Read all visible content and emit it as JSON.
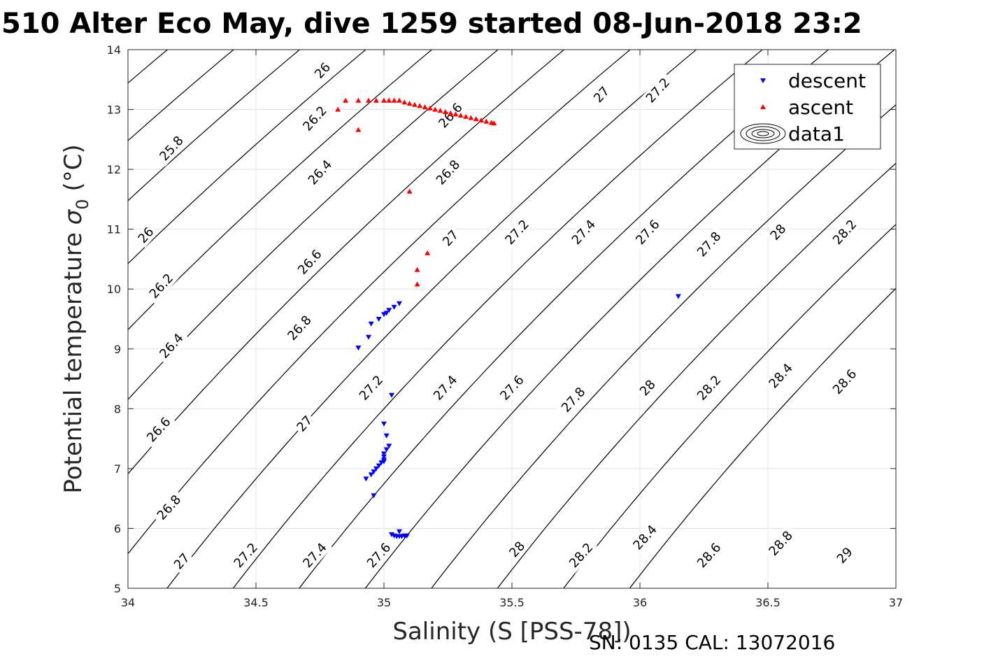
{
  "chart_data": {
    "type": "scatter",
    "title": "510 Alter Eco May, dive 1259 started 08-Jun-2018 23:2",
    "xlabel": "Salinity (S [PSS-78])",
    "ylabel": "Potential temperature σ0 (°C)",
    "ylabel_main": "Potential temperature ",
    "ylabel_sigma": "σ",
    "ylabel_sub": "0",
    "ylabel_unit": " (°C)",
    "footer": "SN: 0135  CAL: 13072016",
    "xlim": [
      34,
      37
    ],
    "ylim": [
      5,
      14
    ],
    "grid": true,
    "legend_position": "top-right",
    "x_ticks": [
      34,
      34.5,
      35,
      35.5,
      36,
      36.5,
      37
    ],
    "x_tick_labels": [
      "34",
      "34.5",
      "35",
      "35.5",
      "36",
      "36.5",
      "37"
    ],
    "y_ticks": [
      5,
      6,
      7,
      8,
      9,
      10,
      11,
      12,
      13,
      14
    ],
    "y_tick_labels": [
      "5",
      "6",
      "7",
      "8",
      "9",
      "10",
      "11",
      "12",
      "13",
      "14"
    ],
    "series": [
      {
        "name": "descent",
        "marker": "triangle-down",
        "color": "#0000ff",
        "points": [
          [
            34.9,
            9.02
          ],
          [
            34.94,
            9.2
          ],
          [
            34.95,
            9.42
          ],
          [
            34.98,
            9.5
          ],
          [
            35.0,
            9.58
          ],
          [
            35.01,
            9.6
          ],
          [
            35.02,
            9.65
          ],
          [
            35.04,
            9.7
          ],
          [
            35.06,
            9.76
          ],
          [
            35.03,
            8.23
          ],
          [
            35.0,
            7.75
          ],
          [
            35.01,
            7.55
          ],
          [
            35.02,
            7.38
          ],
          [
            35.01,
            7.32
          ],
          [
            35.0,
            7.25
          ],
          [
            35.0,
            7.2
          ],
          [
            35.0,
            7.15
          ],
          [
            35.0,
            7.12
          ],
          [
            34.99,
            7.1
          ],
          [
            34.98,
            7.05
          ],
          [
            34.97,
            7.0
          ],
          [
            34.96,
            6.95
          ],
          [
            34.95,
            6.9
          ],
          [
            34.93,
            6.83
          ],
          [
            34.96,
            6.55
          ],
          [
            35.03,
            5.9
          ],
          [
            35.04,
            5.88
          ],
          [
            35.05,
            5.87
          ],
          [
            35.06,
            5.87
          ],
          [
            35.07,
            5.87
          ],
          [
            35.08,
            5.88
          ],
          [
            35.09,
            5.88
          ],
          [
            35.06,
            5.95
          ],
          [
            36.15,
            9.88
          ]
        ]
      },
      {
        "name": "ascent",
        "marker": "triangle-up",
        "color": "#ff0000",
        "points": [
          [
            34.82,
            13.0
          ],
          [
            34.85,
            13.15
          ],
          [
            34.9,
            13.15
          ],
          [
            34.94,
            13.15
          ],
          [
            34.97,
            13.15
          ],
          [
            35.0,
            13.15
          ],
          [
            35.02,
            13.15
          ],
          [
            35.04,
            13.15
          ],
          [
            35.06,
            13.15
          ],
          [
            35.08,
            13.12
          ],
          [
            35.1,
            13.1
          ],
          [
            35.12,
            13.08
          ],
          [
            35.14,
            13.06
          ],
          [
            35.16,
            13.04
          ],
          [
            35.18,
            13.02
          ],
          [
            35.2,
            13.0
          ],
          [
            35.22,
            12.98
          ],
          [
            35.24,
            12.96
          ],
          [
            35.26,
            12.94
          ],
          [
            35.28,
            12.92
          ],
          [
            35.3,
            12.9
          ],
          [
            35.32,
            12.88
          ],
          [
            35.34,
            12.86
          ],
          [
            35.36,
            12.84
          ],
          [
            35.38,
            12.82
          ],
          [
            35.4,
            12.8
          ],
          [
            35.42,
            12.78
          ],
          [
            35.43,
            12.77
          ],
          [
            34.9,
            12.66
          ],
          [
            35.1,
            11.63
          ],
          [
            35.17,
            10.6
          ],
          [
            35.13,
            10.32
          ],
          [
            35.13,
            10.08
          ]
        ]
      }
    ],
    "legend": [
      {
        "label": "descent",
        "marker": "triangle-down",
        "color": "#0000ff"
      },
      {
        "label": "ascent",
        "marker": "triangle-up",
        "color": "#ff0000"
      },
      {
        "label": "data1",
        "marker": "contour-ellipses",
        "color": "#000000"
      }
    ],
    "contours": {
      "name": "data1",
      "color": "#000000",
      "levels": [
        25.8,
        26,
        26.2,
        26.4,
        26.6,
        26.8,
        27,
        27.2,
        27.4,
        27.6,
        27.8,
        28,
        28.2,
        28.4,
        28.6,
        28.8,
        29
      ],
      "labels": [
        {
          "text": "25.8",
          "s": 34.17,
          "t": 12.35
        },
        {
          "text": "26",
          "s": 34.76,
          "t": 13.65
        },
        {
          "text": "26",
          "s": 34.07,
          "t": 10.9
        },
        {
          "text": "26.2",
          "s": 34.73,
          "t": 12.85
        },
        {
          "text": "26.2",
          "s": 34.13,
          "t": 10.05
        },
        {
          "text": "26.4",
          "s": 34.75,
          "t": 11.95
        },
        {
          "text": "26.4",
          "s": 34.17,
          "t": 9.05
        },
        {
          "text": "26.6",
          "s": 35.26,
          "t": 12.9
        },
        {
          "text": "26.6",
          "s": 34.71,
          "t": 10.45
        },
        {
          "text": "26.6",
          "s": 34.12,
          "t": 7.65
        },
        {
          "text": "26.8",
          "s": 35.25,
          "t": 11.95
        },
        {
          "text": "26.8",
          "s": 34.67,
          "t": 9.35
        },
        {
          "text": "26.8",
          "s": 34.16,
          "t": 6.35
        },
        {
          "text": "27",
          "s": 35.85,
          "t": 13.25
        },
        {
          "text": "27",
          "s": 35.26,
          "t": 10.85
        },
        {
          "text": "27",
          "s": 34.69,
          "t": 7.75
        },
        {
          "text": "27",
          "s": 34.21,
          "t": 5.45
        },
        {
          "text": "27.2",
          "s": 36.07,
          "t": 13.32
        },
        {
          "text": "27.2",
          "s": 35.52,
          "t": 10.95
        },
        {
          "text": "27.2",
          "s": 34.95,
          "t": 8.35
        },
        {
          "text": "27.2",
          "s": 34.46,
          "t": 5.55
        },
        {
          "text": "27.4",
          "s": 35.78,
          "t": 10.95
        },
        {
          "text": "27.4",
          "s": 35.24,
          "t": 8.35
        },
        {
          "text": "27.4",
          "s": 34.73,
          "t": 5.55
        },
        {
          "text": "27.6",
          "s": 36.03,
          "t": 10.95
        },
        {
          "text": "27.6",
          "s": 35.5,
          "t": 8.35
        },
        {
          "text": "27.6",
          "s": 34.98,
          "t": 5.55
        },
        {
          "text": "27.8",
          "s": 36.27,
          "t": 10.75
        },
        {
          "text": "27.8",
          "s": 35.74,
          "t": 8.15
        },
        {
          "text": "28",
          "s": 36.54,
          "t": 10.95
        },
        {
          "text": "28",
          "s": 36.03,
          "t": 8.35
        },
        {
          "text": "28",
          "s": 35.52,
          "t": 5.65
        },
        {
          "text": "28.2",
          "s": 36.8,
          "t": 10.95
        },
        {
          "text": "28.2",
          "s": 36.27,
          "t": 8.35
        },
        {
          "text": "28.2",
          "s": 35.77,
          "t": 5.55
        },
        {
          "text": "28.4",
          "s": 36.55,
          "t": 8.55
        },
        {
          "text": "28.4",
          "s": 36.02,
          "t": 5.85
        },
        {
          "text": "28.6",
          "s": 36.8,
          "t": 8.45
        },
        {
          "text": "28.6",
          "s": 36.27,
          "t": 5.55
        },
        {
          "text": "28.8",
          "s": 36.55,
          "t": 5.75
        },
        {
          "text": "29",
          "s": 36.8,
          "t": 5.55
        }
      ]
    }
  }
}
